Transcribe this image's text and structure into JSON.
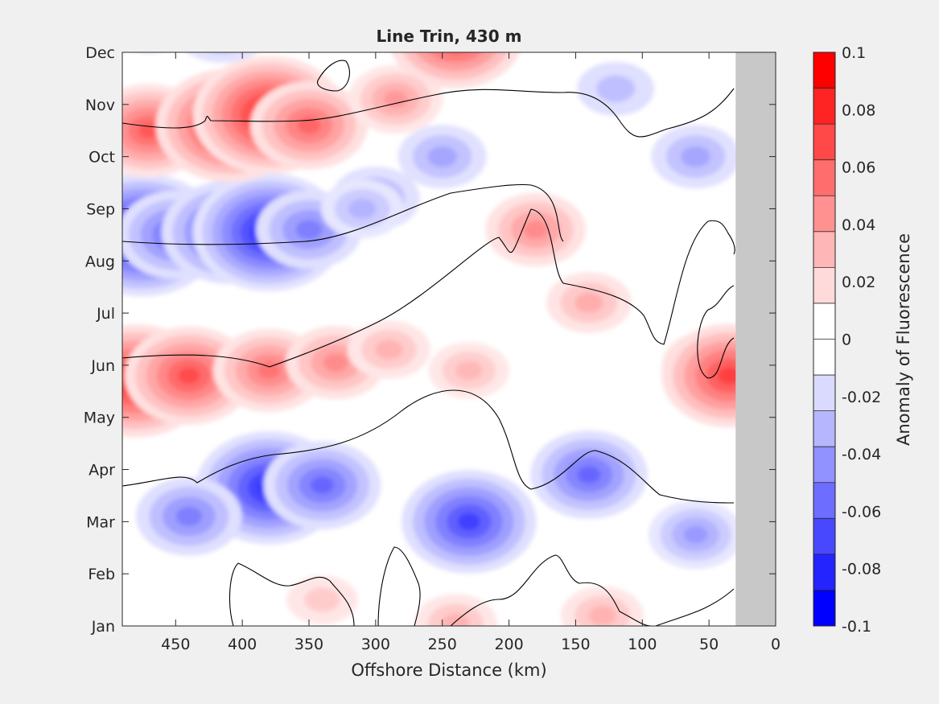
{
  "chart_data": {
    "type": "heatmap",
    "title": "Line Trin, 430 m",
    "xlabel": "Offshore Distance (km)",
    "ylabel": "",
    "xlim": [
      490,
      0
    ],
    "x_direction": "reversed",
    "x_ticks": [
      450,
      400,
      350,
      300,
      250,
      200,
      150,
      100,
      50,
      0
    ],
    "y_ticks": [
      "Jan",
      "Feb",
      "Mar",
      "Apr",
      "May",
      "Jun",
      "Jul",
      "Aug",
      "Sep",
      "Oct",
      "Nov",
      "Dec"
    ],
    "colorbar": {
      "label": "Anomaly of Fluorescence",
      "ticks": [
        "0.1",
        "0.08",
        "0.06",
        "0.04",
        "0.02",
        "0",
        "-0.02",
        "-0.04",
        "-0.06",
        "-0.08",
        "-0.1"
      ],
      "range": [
        -0.1,
        0.1
      ],
      "colors": [
        "#ff0000",
        "#ff2424",
        "#ff4848",
        "#ff6d6d",
        "#ff9191",
        "#ffb6b6",
        "#ffdada",
        "#ffffff",
        "#ffffff",
        "#dadaff",
        "#b6b6ff",
        "#9191ff",
        "#6d6dff",
        "#4848ff",
        "#2424ff",
        "#0000ff"
      ]
    },
    "no_data_region": {
      "x_from": 30,
      "x_to": 0,
      "color": "#c8c8c8"
    },
    "anomaly_blobs": [
      {
        "x": 475,
        "month": 7.5,
        "value": -0.095
      },
      {
        "x": 450,
        "month": 7.5,
        "value": -0.06
      },
      {
        "x": 410,
        "month": 7.55,
        "value": -0.075
      },
      {
        "x": 380,
        "month": 7.55,
        "value": -0.09
      },
      {
        "x": 350,
        "month": 7.6,
        "value": -0.05
      },
      {
        "x": 300,
        "month": 8.2,
        "value": -0.035
      },
      {
        "x": 480,
        "month": 4.7,
        "value": 0.085
      },
      {
        "x": 440,
        "month": 4.8,
        "value": 0.07
      },
      {
        "x": 380,
        "month": 4.9,
        "value": 0.055
      },
      {
        "x": 330,
        "month": 5.05,
        "value": 0.045
      },
      {
        "x": 290,
        "month": 5.3,
        "value": 0.03
      },
      {
        "x": 230,
        "month": 4.9,
        "value": 0.028
      },
      {
        "x": 140,
        "month": 6.2,
        "value": 0.032
      },
      {
        "x": 50,
        "month": 5.0,
        "value": 0.04
      },
      {
        "x": 35,
        "month": 4.8,
        "value": 0.075
      },
      {
        "x": 470,
        "month": 9.5,
        "value": 0.065
      },
      {
        "x": 410,
        "month": 9.6,
        "value": 0.085
      },
      {
        "x": 380,
        "month": 9.8,
        "value": 0.09
      },
      {
        "x": 350,
        "month": 9.6,
        "value": 0.06
      },
      {
        "x": 285,
        "month": 10.1,
        "value": 0.04
      },
      {
        "x": 240,
        "month": 11.3,
        "value": 0.075
      },
      {
        "x": 180,
        "month": 7.6,
        "value": 0.045
      },
      {
        "x": 380,
        "month": 2.65,
        "value": -0.085
      },
      {
        "x": 340,
        "month": 2.7,
        "value": -0.06
      },
      {
        "x": 440,
        "month": 2.1,
        "value": -0.05
      },
      {
        "x": 230,
        "month": 2.0,
        "value": -0.075
      },
      {
        "x": 140,
        "month": 2.9,
        "value": -0.06
      },
      {
        "x": 60,
        "month": 1.75,
        "value": -0.04
      },
      {
        "x": 250,
        "month": 9.0,
        "value": -0.035
      },
      {
        "x": 470,
        "month": 11.5,
        "value": -0.025
      },
      {
        "x": 415,
        "month": 11.5,
        "value": -0.045
      },
      {
        "x": 310,
        "month": 8.0,
        "value": -0.03
      },
      {
        "x": 60,
        "month": 9.0,
        "value": -0.035
      },
      {
        "x": 120,
        "month": 10.3,
        "value": -0.025
      },
      {
        "x": 240,
        "month": 0.05,
        "value": 0.03
      },
      {
        "x": 130,
        "month": 0.2,
        "value": 0.03
      },
      {
        "x": 340,
        "month": 0.5,
        "value": 0.02
      }
    ]
  }
}
